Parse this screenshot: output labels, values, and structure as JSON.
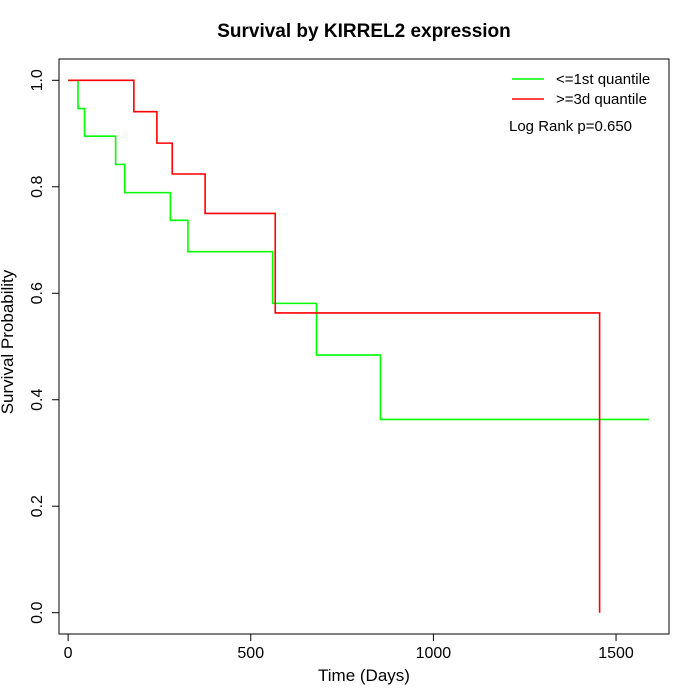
{
  "chart_data": {
    "type": "line",
    "step": true,
    "title": "Survival by KIRREL2 expression",
    "xlabel": "Time (Days)",
    "ylabel": "Survival Probability",
    "xlim": [
      -25,
      1645
    ],
    "ylim": [
      -0.04,
      1.04
    ],
    "xticks": [
      0,
      500,
      1000,
      1500
    ],
    "yticks": [
      0.0,
      0.2,
      0.4,
      0.6,
      0.8,
      1.0
    ],
    "xtick_labels": [
      "0",
      "500",
      "1000",
      "1500"
    ],
    "ytick_labels": [
      "0.0",
      "0.2",
      "0.4",
      "0.6",
      "0.8",
      "1.0"
    ],
    "grid": false,
    "legend_position": "top-right",
    "annotation": "Log Rank p=0.650",
    "series": [
      {
        "name": "<=1st quantile",
        "color": "#00ff00",
        "x": [
          0,
          27,
          45,
          130,
          155,
          280,
          328,
          560,
          680,
          855,
          1590
        ],
        "y": [
          1.0,
          0.947,
          0.895,
          0.842,
          0.789,
          0.737,
          0.678,
          0.581,
          0.484,
          0.363,
          0.363
        ]
      },
      {
        "name": ">=3d quantile",
        "color": "#ff0000",
        "x": [
          0,
          180,
          243,
          285,
          375,
          567,
          1455,
          1455
        ],
        "y": [
          1.0,
          0.941,
          0.882,
          0.824,
          0.75,
          0.563,
          0.563,
          0.0
        ]
      }
    ]
  }
}
